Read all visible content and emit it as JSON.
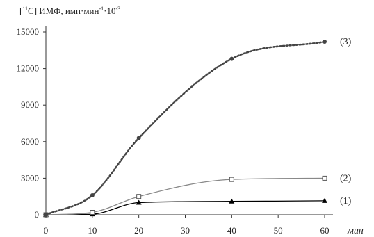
{
  "chart_data": {
    "type": "line",
    "title": "",
    "ylabel": {
      "bracket_open": "[",
      "isotope_sup": "11",
      "element": "C",
      "bracket_close": "] ИМФ, имп·мин",
      "unit_sup": "-1",
      "factor": "·10",
      "factor_sup": "-3"
    },
    "xlabel": "мин",
    "x": [
      0,
      10,
      20,
      40,
      60
    ],
    "xticks": [
      0,
      10,
      20,
      30,
      40,
      50,
      60
    ],
    "yticks": [
      0,
      3000,
      6000,
      9000,
      12000,
      15000
    ],
    "xlim": [
      0,
      60
    ],
    "ylim": [
      0,
      15000
    ],
    "grid": false,
    "series": [
      {
        "name": "(1)",
        "values": [
          0,
          50,
          1000,
          1100,
          1150
        ],
        "color": "#000000",
        "marker": "triangle-filled",
        "dash": "solid"
      },
      {
        "name": "(2)",
        "values": [
          0,
          200,
          1500,
          2900,
          3000
        ],
        "color": "#888888",
        "marker": "square-open",
        "dash": "solid"
      },
      {
        "name": "(3)",
        "values": [
          0,
          1600,
          6300,
          12800,
          14200
        ],
        "color": "#444444",
        "marker": "circle-filled",
        "dash": "dotted"
      }
    ]
  }
}
